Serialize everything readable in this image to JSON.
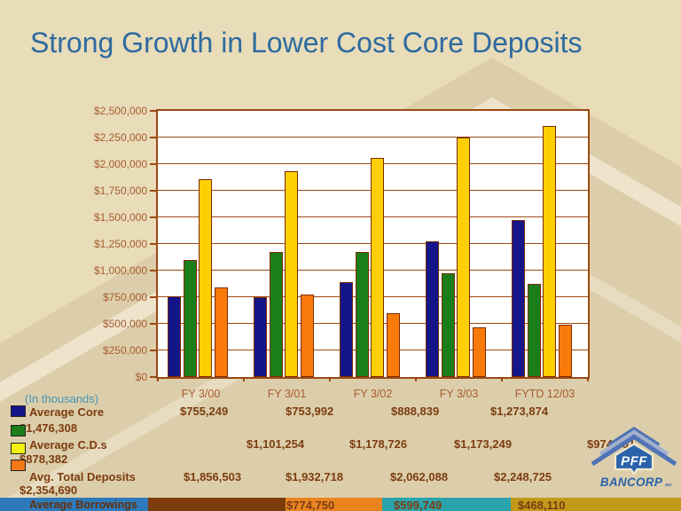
{
  "slide": {
    "title": "Strong Growth in Lower Cost Core Deposits"
  },
  "colors": {
    "background": "#e8dcb9",
    "title_text": "#2d6a9f",
    "axis_text": "#a85c32",
    "table_text": "#7c3c10",
    "note_text": "#4595b5",
    "grid": "#9c4a12",
    "plot_bg": "#ffffff",
    "bar_border": "#7c2d06",
    "series": [
      "#15158a",
      "#1b7e1b",
      "#fdcf03",
      "#f87a0b"
    ],
    "legend_swatches": [
      "#15158a",
      "#1b7e1b",
      "#f2f20c",
      "#f07815"
    ],
    "footer_bands": [
      "#2e79ba",
      "#7c3d0b",
      "#e98420",
      "#2aa3ac",
      "#c19a19"
    ],
    "logo_blue": "#2a63ab",
    "logo_chevron": "#4f74b5",
    "logo_chevron_light": "#a3b0cc"
  },
  "chart_data": {
    "type": "bar",
    "title": "Strong Growth in Lower Cost Core Deposits",
    "units_note": "(In thousands)",
    "categories": [
      "FY 3/00",
      "FY 3/01",
      "FY 3/02",
      "FY 3/03",
      "FYTD 12/03"
    ],
    "series": [
      {
        "name": "Average Core",
        "values": [
          755249,
          753992,
          888839,
          1273874,
          1476308
        ]
      },
      {
        "name": "Average C.D.s",
        "values": [
          1101254,
          1178726,
          1173249,
          974851,
          878382
        ]
      },
      {
        "name": "Avg. Total Deposits",
        "values": [
          1856503,
          1932718,
          2062088,
          2248725,
          2354690
        ]
      },
      {
        "name": "Average Borrowings",
        "values": [
          840000,
          774750,
          599749,
          468110,
          490000
        ],
        "note": "first and last values estimated from bar heights; not labeled on slide"
      }
    ],
    "ylim": [
      0,
      2500000
    ],
    "ytick_step": 250000,
    "ytick_labels": [
      "$0",
      "$250,000",
      "$500,000",
      "$750,000",
      "$1,000,000",
      "$1,250,000",
      "$1,500,000",
      "$1,750,000",
      "$2,000,000",
      "$2,250,000",
      "$2,500,000"
    ],
    "grid": true,
    "legend_position": "bottom-left"
  },
  "table": {
    "note": "(In thousands)",
    "columns": [
      "FY 3/00",
      "FY 3/01",
      "FY 3/02",
      "FY 3/03",
      "FYTD 12/03"
    ],
    "rows": [
      {
        "label": "Average Core",
        "cells": [
          "$755,249",
          "$753,992",
          "$888,839",
          "$1,273,874"
        ],
        "wrapped_cell": "$1,476,308"
      },
      {
        "label": "Average C.D.s",
        "cells": [
          "$1,101,254",
          "$1,178,726",
          "$1,173,249",
          "$974,851"
        ],
        "wrapped_cell": "$878,382"
      },
      {
        "label": "Avg. Total Deposits",
        "cells": [
          "$1,856,503",
          "$1,932,718",
          "$2,062,088",
          "$2,248,725"
        ],
        "wrapped_cell": "$2,354,690"
      },
      {
        "label": "Average Borrowings",
        "cells": [
          "$774,750",
          "$599,749",
          "$468,110"
        ],
        "wrapped_cell": ""
      }
    ]
  },
  "logo": {
    "brand": "PFF",
    "company": "BANCORP",
    "suffix": "INC"
  }
}
